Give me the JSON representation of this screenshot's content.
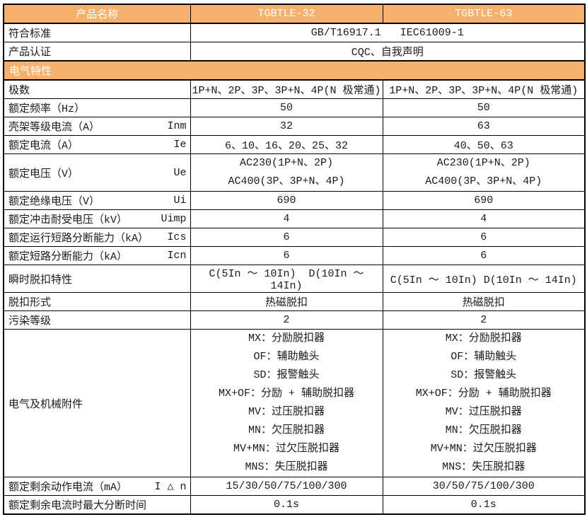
{
  "colors": {
    "accent_orange": "#F5B06C",
    "border_black": "#000000",
    "header_text": "#FFFFFF",
    "body_text": "#1A1A1A"
  },
  "table": {
    "rows": [
      {
        "type": "header",
        "cells": [
          "产品名称",
          "TGBTLE-32",
          "TGBTLE-63"
        ]
      },
      {
        "type": "span",
        "label": "符合标准",
        "value": "GB/T16917.1   IEC61009-1"
      },
      {
        "type": "span",
        "label": "产品认证",
        "value": "CQC、自我声明"
      },
      {
        "type": "section",
        "label": "电气特性"
      },
      {
        "type": "data",
        "label": "极数",
        "symbol": "",
        "v1": "1P+N、2P、3P、3P+N、4P(N 极常通)",
        "v2": "1P+N、2P、3P、3P+N、4P(N 极常通)"
      },
      {
        "type": "data",
        "label": "额定频率（Hz）",
        "symbol": "",
        "v1": "50",
        "v2": "50"
      },
      {
        "type": "data",
        "label": "壳架等级电流（A）",
        "symbol": "Inm",
        "v1": "32",
        "v2": "63"
      },
      {
        "type": "data",
        "label": "额定电流（A）",
        "symbol": "Ie",
        "v1": "6、10、16、20、25、32",
        "v2": "40、50、63"
      },
      {
        "type": "data",
        "label": "额定电压（V）",
        "symbol": "Ue",
        "v1": [
          "AC230(1P+N、2P)",
          "AC400(3P、3P+N、4P)"
        ],
        "v2": [
          "AC230(1P+N、2P)",
          "AC400(3P、3P+N、4P)"
        ]
      },
      {
        "type": "data",
        "label": "额定绝缘电压（V）",
        "symbol": "Ui",
        "v1": "690",
        "v2": "690"
      },
      {
        "type": "data",
        "label": "额定冲击耐受电压（kV）",
        "symbol": "Uimp",
        "v1": "4",
        "v2": "4"
      },
      {
        "type": "data",
        "label": "额定运行短路分断能力（kA）",
        "symbol": "Ics",
        "v1": "6",
        "v2": "6"
      },
      {
        "type": "data",
        "label": "额定短路分断能力（kA）",
        "symbol": "Icn",
        "v1": "6",
        "v2": "6"
      },
      {
        "type": "data",
        "label": "瞬时脱扣特性",
        "symbol": "",
        "v1": "C(5In ～ 10In)  D(10In ～ 14In)",
        "v2": "C(5In ～ 10In) D(10In ～ 14In)"
      },
      {
        "type": "data",
        "label": "脱扣形式",
        "symbol": "",
        "v1": "热磁脱扣",
        "v2": "热磁脱扣"
      },
      {
        "type": "data",
        "label": "污染等级",
        "symbol": "",
        "v1": "2",
        "v2": "2"
      },
      {
        "type": "data",
        "label": "电气及机械附件",
        "symbol": "",
        "v1": [
          "MX：分励脱扣器",
          "OF：辅助触头",
          "SD：报警触头",
          "MX+OF：分励 + 辅助脱扣器",
          "MV：过压脱扣器",
          "MN：欠压脱扣器",
          "MV+MN：过欠压脱扣器",
          "MNS：失压脱扣器"
        ],
        "v2": [
          "MX：分励脱扣器",
          "OF：辅助触头",
          "SD：报警触头",
          "MX+OF：分励 + 辅助脱扣器",
          "MV：过压脱扣器",
          "MN：欠压脱扣器",
          "MV+MN：过欠压脱扣器",
          "MNS：失压脱扣器"
        ]
      },
      {
        "type": "data",
        "label": "额定剩余动作电流（mA）",
        "symbol": "I △ n",
        "v1": "15/30/50/75/100/300",
        "v2": "30/50/75/100/300"
      },
      {
        "type": "data",
        "label": "额定剩余电流时最大分断时间",
        "symbol": "",
        "v1": "0.1s",
        "v2": "0.1s"
      }
    ]
  }
}
